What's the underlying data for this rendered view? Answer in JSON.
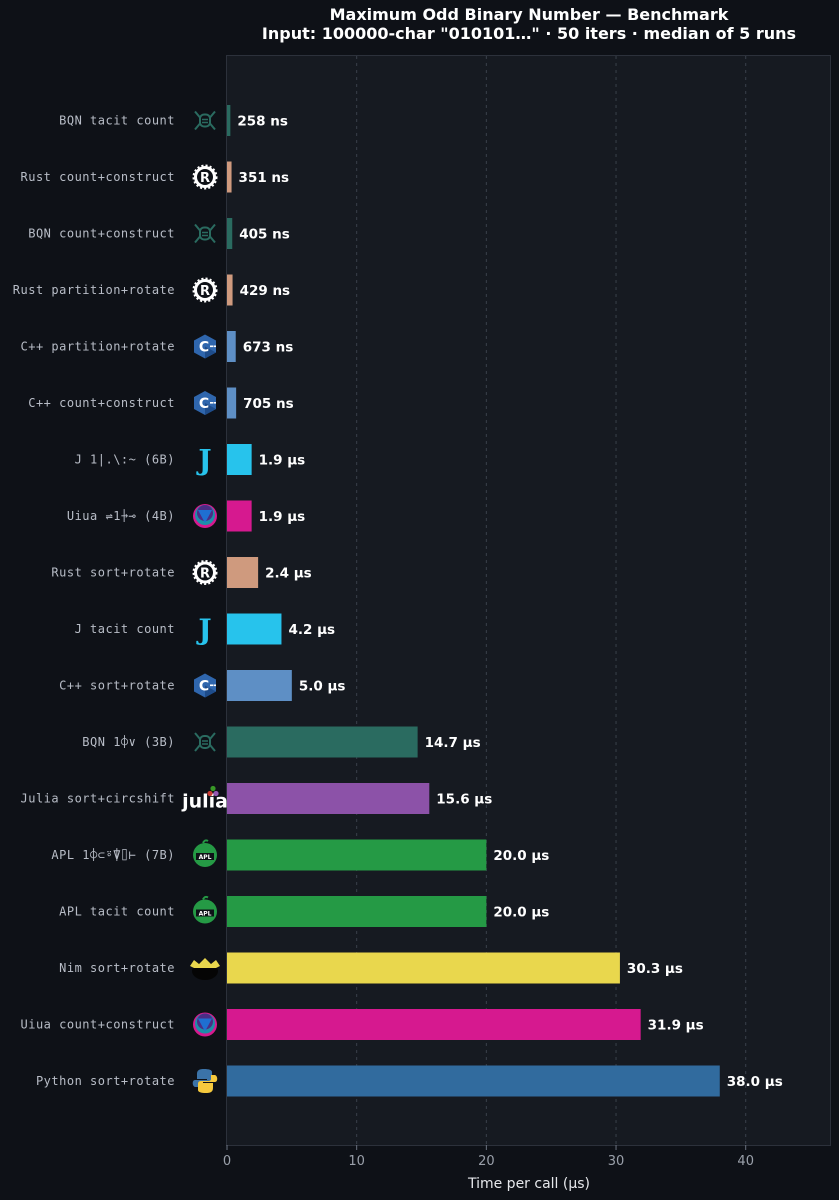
{
  "chart_data": {
    "type": "bar",
    "orientation": "horizontal",
    "title": "Maximum Odd Binary Number — Benchmark",
    "subtitle": "Input: 100000-char \"010101…\"  ·  50 iters  ·  median of 5 runs",
    "xlabel": "Time per call (µs)",
    "ylabel": "",
    "xlim": [
      0,
      46.5
    ],
    "xticks": [
      "0",
      "10",
      "20",
      "30",
      "40"
    ],
    "grid": "vertical dashed",
    "categories": [
      "BQN  tacit count",
      "Rust  count+construct",
      "BQN  count+construct",
      "Rust  partition+rotate",
      "C++  partition+rotate",
      "C++  count+construct",
      "J  1|.\\:~ (6B)",
      "Uiua  ⇌1⍆⊸ (4B)",
      "Rust  sort+rotate",
      "J  tacit count",
      "C++  sort+rotate",
      "BQN  1⌽∨ (3B)",
      "Julia  sort+circshift",
      "APL  1⌽⊂⍤⍒⌷⊢ (7B)",
      "APL  tacit count",
      "Nim  sort+rotate",
      "Uiua  count+construct",
      "Python  sort+rotate"
    ],
    "values": [
      0.258,
      0.351,
      0.405,
      0.429,
      0.673,
      0.705,
      1.9,
      1.9,
      2.4,
      4.2,
      5.0,
      14.7,
      15.6,
      20.0,
      20.0,
      30.3,
      31.9,
      38.0
    ],
    "value_labels": [
      "258 ns",
      "351 ns",
      "405 ns",
      "429 ns",
      "673 ns",
      "705 ns",
      "1.9 µs",
      "1.9 µs",
      "2.4 µs",
      "4.2 µs",
      "5.0 µs",
      "14.7 µs",
      "15.6 µs",
      "20.0 µs",
      "20.0 µs",
      "30.3 µs",
      "31.9 µs",
      "38.0 µs"
    ],
    "languages": [
      "bqn",
      "rust",
      "bqn",
      "rust",
      "cpp",
      "cpp",
      "j",
      "uiua",
      "rust",
      "j",
      "cpp",
      "bqn",
      "julia",
      "apl",
      "apl",
      "nim",
      "uiua",
      "python"
    ],
    "colors": {
      "bqn": "#2a6b60",
      "rust": "#cf9a7e",
      "cpp": "#5e8fc5",
      "j": "#27c3ec",
      "uiua": "#d6198f",
      "julia": "#8c52a8",
      "apl": "#259a45",
      "nim": "#e9d74d",
      "python": "#316b9e"
    },
    "icons": {
      "bqn": "bqn-logo-icon",
      "rust": "rust-logo-icon",
      "cpp": "cpp-logo-icon",
      "j": "j-logo-icon",
      "uiua": "uiua-logo-icon",
      "julia": "julia-logo-icon",
      "apl": "apl-logo-icon",
      "nim": "nim-logo-icon",
      "python": "python-logo-icon"
    },
    "logo_text": {
      "rust": "R",
      "cpp": "C",
      "j": "J",
      "julia": "julia",
      "apl": "APL"
    },
    "background": "#0e1117",
    "plot_background": "#161a21"
  }
}
